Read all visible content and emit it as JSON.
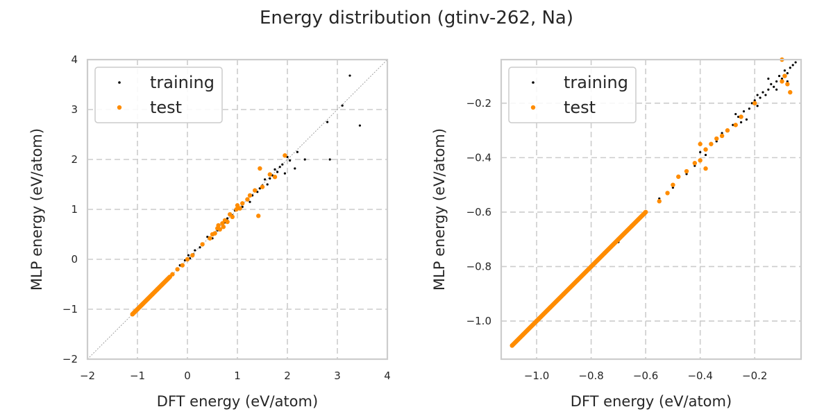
{
  "figure": {
    "title": "Energy distribution (gtinv-262, Na)"
  },
  "colors": {
    "training": "#000000",
    "test": "#ff8c00",
    "grid": "#cccccc",
    "frame": "#cccccc",
    "legend_border": "#cccccc",
    "diagonal": "#999999",
    "text": "#262626"
  },
  "chart_data": [
    {
      "type": "scatter",
      "title": "",
      "xlabel": "DFT energy (eV/atom)",
      "ylabel": "MLP energy (eV/atom)",
      "xlim": [
        -2,
        4
      ],
      "ylim": [
        -2,
        4
      ],
      "xticks": [
        -2,
        -1,
        0,
        1,
        2,
        3,
        4
      ],
      "yticks": [
        -2,
        -1,
        0,
        1,
        2,
        3,
        4
      ],
      "xtick_labels": [
        "−2",
        "−1",
        "0",
        "1",
        "2",
        "3",
        "4"
      ],
      "ytick_labels": [
        "−2",
        "−1",
        "0",
        "1",
        "2",
        "3",
        "4"
      ],
      "grid": true,
      "diagonal_reference": true,
      "legend_position": "upper-left",
      "series": [
        {
          "name": "training",
          "points": [
            [
              -1.07,
              -1.08
            ],
            [
              -1.02,
              -1.03
            ],
            [
              -0.95,
              -0.95
            ],
            [
              -0.85,
              -0.86
            ],
            [
              -0.7,
              -0.71
            ],
            [
              -0.5,
              -0.5
            ],
            [
              -0.3,
              -0.31
            ],
            [
              -0.15,
              -0.12
            ],
            [
              -0.05,
              -0.02
            ],
            [
              0.02,
              0.08
            ],
            [
              0.05,
              0.02
            ],
            [
              0.12,
              0.1
            ],
            [
              0.15,
              0.18
            ],
            [
              0.25,
              0.24
            ],
            [
              0.3,
              0.3
            ],
            [
              0.4,
              0.45
            ],
            [
              0.5,
              0.42
            ],
            [
              0.6,
              0.58
            ],
            [
              0.75,
              0.74
            ],
            [
              0.8,
              0.82
            ],
            [
              0.9,
              0.88
            ],
            [
              1.0,
              1.0
            ],
            [
              1.1,
              1.05
            ],
            [
              1.2,
              1.22
            ],
            [
              1.3,
              1.28
            ],
            [
              1.35,
              1.4
            ],
            [
              1.4,
              1.35
            ],
            [
              1.5,
              1.48
            ],
            [
              1.55,
              1.6
            ],
            [
              1.6,
              1.5
            ],
            [
              1.65,
              1.62
            ],
            [
              1.7,
              1.68
            ],
            [
              1.75,
              1.8
            ],
            [
              1.8,
              1.75
            ],
            [
              1.85,
              1.85
            ],
            [
              1.9,
              1.9
            ],
            [
              2.0,
              2.05
            ],
            [
              1.95,
              1.72
            ],
            [
              2.05,
              1.98
            ],
            [
              2.15,
              1.82
            ],
            [
              2.2,
              2.15
            ],
            [
              2.35,
              2.0
            ],
            [
              2.8,
              2.75
            ],
            [
              2.85,
              2.0
            ],
            [
              3.1,
              3.08
            ],
            [
              3.25,
              3.68
            ],
            [
              3.45,
              2.68
            ],
            [
              0.55,
              0.5
            ],
            [
              0.7,
              0.65
            ],
            [
              1.25,
              1.15
            ],
            [
              0.95,
              0.98
            ],
            [
              1.45,
              1.42
            ]
          ]
        },
        {
          "name": "test",
          "points": [
            [
              -1.1,
              -1.1
            ],
            [
              -1.05,
              -1.05
            ],
            [
              -1.0,
              -1.0
            ],
            [
              -0.9,
              -0.9
            ],
            [
              -0.8,
              -0.8
            ],
            [
              -0.7,
              -0.7
            ],
            [
              -0.6,
              -0.6
            ],
            [
              -0.5,
              -0.5
            ],
            [
              -0.4,
              -0.4
            ],
            [
              -0.3,
              -0.3
            ],
            [
              -0.2,
              -0.2
            ],
            [
              -0.1,
              -0.12
            ],
            [
              0.0,
              0.0
            ],
            [
              0.1,
              0.08
            ],
            [
              0.3,
              0.3
            ],
            [
              0.45,
              0.42
            ],
            [
              0.5,
              0.5
            ],
            [
              0.55,
              0.52
            ],
            [
              0.6,
              0.62
            ],
            [
              0.62,
              0.68
            ],
            [
              0.65,
              0.6
            ],
            [
              0.7,
              0.72
            ],
            [
              0.72,
              0.65
            ],
            [
              0.75,
              0.78
            ],
            [
              0.8,
              0.75
            ],
            [
              0.85,
              0.9
            ],
            [
              0.9,
              0.85
            ],
            [
              0.98,
              1.0
            ],
            [
              1.0,
              1.08
            ],
            [
              1.05,
              1.02
            ],
            [
              1.1,
              1.12
            ],
            [
              1.2,
              1.2
            ],
            [
              1.25,
              1.28
            ],
            [
              1.35,
              1.38
            ],
            [
              1.42,
              0.87
            ],
            [
              1.45,
              1.82
            ],
            [
              1.5,
              1.45
            ],
            [
              1.65,
              1.7
            ],
            [
              1.75,
              1.65
            ],
            [
              1.95,
              2.08
            ]
          ]
        }
      ]
    },
    {
      "type": "scatter",
      "title": "",
      "xlabel": "DFT energy (eV/atom)",
      "ylabel": "MLP energy (eV/atom)",
      "xlim": [
        -1.13,
        -0.03
      ],
      "ylim": [
        -1.14,
        -0.04
      ],
      "xticks": [
        -1.0,
        -0.8,
        -0.6,
        -0.4,
        -0.2
      ],
      "yticks": [
        -1.0,
        -0.8,
        -0.6,
        -0.4,
        -0.2
      ],
      "xtick_labels": [
        "−1.0",
        "−0.8",
        "−0.6",
        "−0.4",
        "−0.2"
      ],
      "ytick_labels": [
        "−1.0",
        "−0.8",
        "−0.6",
        "−0.4",
        "−0.2"
      ],
      "grid": true,
      "diagonal_reference": false,
      "legend_position": "upper-left",
      "series": [
        {
          "name": "training",
          "points": [
            [
              -1.08,
              -1.08
            ],
            [
              -1.0,
              -1.0
            ],
            [
              -0.9,
              -0.9
            ],
            [
              -0.8,
              -0.8
            ],
            [
              -0.7,
              -0.71
            ],
            [
              -0.62,
              -0.62
            ],
            [
              -0.55,
              -0.55
            ],
            [
              -0.5,
              -0.51
            ],
            [
              -0.45,
              -0.46
            ],
            [
              -0.42,
              -0.43
            ],
            [
              -0.4,
              -0.38
            ],
            [
              -0.38,
              -0.39
            ],
            [
              -0.36,
              -0.35
            ],
            [
              -0.34,
              -0.34
            ],
            [
              -0.32,
              -0.31
            ],
            [
              -0.3,
              -0.3
            ],
            [
              -0.28,
              -0.28
            ],
            [
              -0.26,
              -0.25
            ],
            [
              -0.25,
              -0.27
            ],
            [
              -0.24,
              -0.23
            ],
            [
              -0.22,
              -0.22
            ],
            [
              -0.21,
              -0.2
            ],
            [
              -0.2,
              -0.19
            ],
            [
              -0.19,
              -0.21
            ],
            [
              -0.18,
              -0.18
            ],
            [
              -0.17,
              -0.16
            ],
            [
              -0.16,
              -0.17
            ],
            [
              -0.15,
              -0.15
            ],
            [
              -0.14,
              -0.13
            ],
            [
              -0.13,
              -0.14
            ],
            [
              -0.12,
              -0.12
            ],
            [
              -0.11,
              -0.1
            ],
            [
              -0.1,
              -0.11
            ],
            [
              -0.09,
              -0.08
            ],
            [
              -0.08,
              -0.09
            ],
            [
              -0.07,
              -0.07
            ],
            [
              -0.06,
              -0.06
            ],
            [
              -0.05,
              -0.05
            ],
            [
              -0.23,
              -0.26
            ],
            [
              -0.27,
              -0.24
            ],
            [
              -0.19,
              -0.17
            ],
            [
              -0.12,
              -0.15
            ],
            [
              -0.08,
              -0.12
            ],
            [
              -0.15,
              -0.11
            ]
          ]
        },
        {
          "name": "test",
          "points": [
            [
              -1.09,
              -1.09
            ],
            [
              -1.05,
              -1.05
            ],
            [
              -1.0,
              -1.0
            ],
            [
              -0.95,
              -0.95
            ],
            [
              -0.9,
              -0.9
            ],
            [
              -0.85,
              -0.85
            ],
            [
              -0.8,
              -0.8
            ],
            [
              -0.75,
              -0.75
            ],
            [
              -0.7,
              -0.7
            ],
            [
              -0.65,
              -0.65
            ],
            [
              -0.6,
              -0.6
            ],
            [
              -0.55,
              -0.56
            ],
            [
              -0.52,
              -0.53
            ],
            [
              -0.5,
              -0.5
            ],
            [
              -0.48,
              -0.47
            ],
            [
              -0.45,
              -0.45
            ],
            [
              -0.42,
              -0.42
            ],
            [
              -0.4,
              -0.41
            ],
            [
              -0.38,
              -0.37
            ],
            [
              -0.36,
              -0.35
            ],
            [
              -0.34,
              -0.33
            ],
            [
              -0.32,
              -0.32
            ],
            [
              -0.3,
              -0.3
            ],
            [
              -0.38,
              -0.44
            ],
            [
              -0.4,
              -0.35
            ],
            [
              -0.27,
              -0.28
            ],
            [
              -0.25,
              -0.25
            ],
            [
              -0.2,
              -0.2
            ],
            [
              -0.1,
              -0.12
            ],
            [
              -0.09,
              -0.1
            ],
            [
              -0.08,
              -0.13
            ],
            [
              -0.07,
              -0.16
            ],
            [
              -0.1,
              -0.04
            ]
          ]
        }
      ]
    }
  ]
}
